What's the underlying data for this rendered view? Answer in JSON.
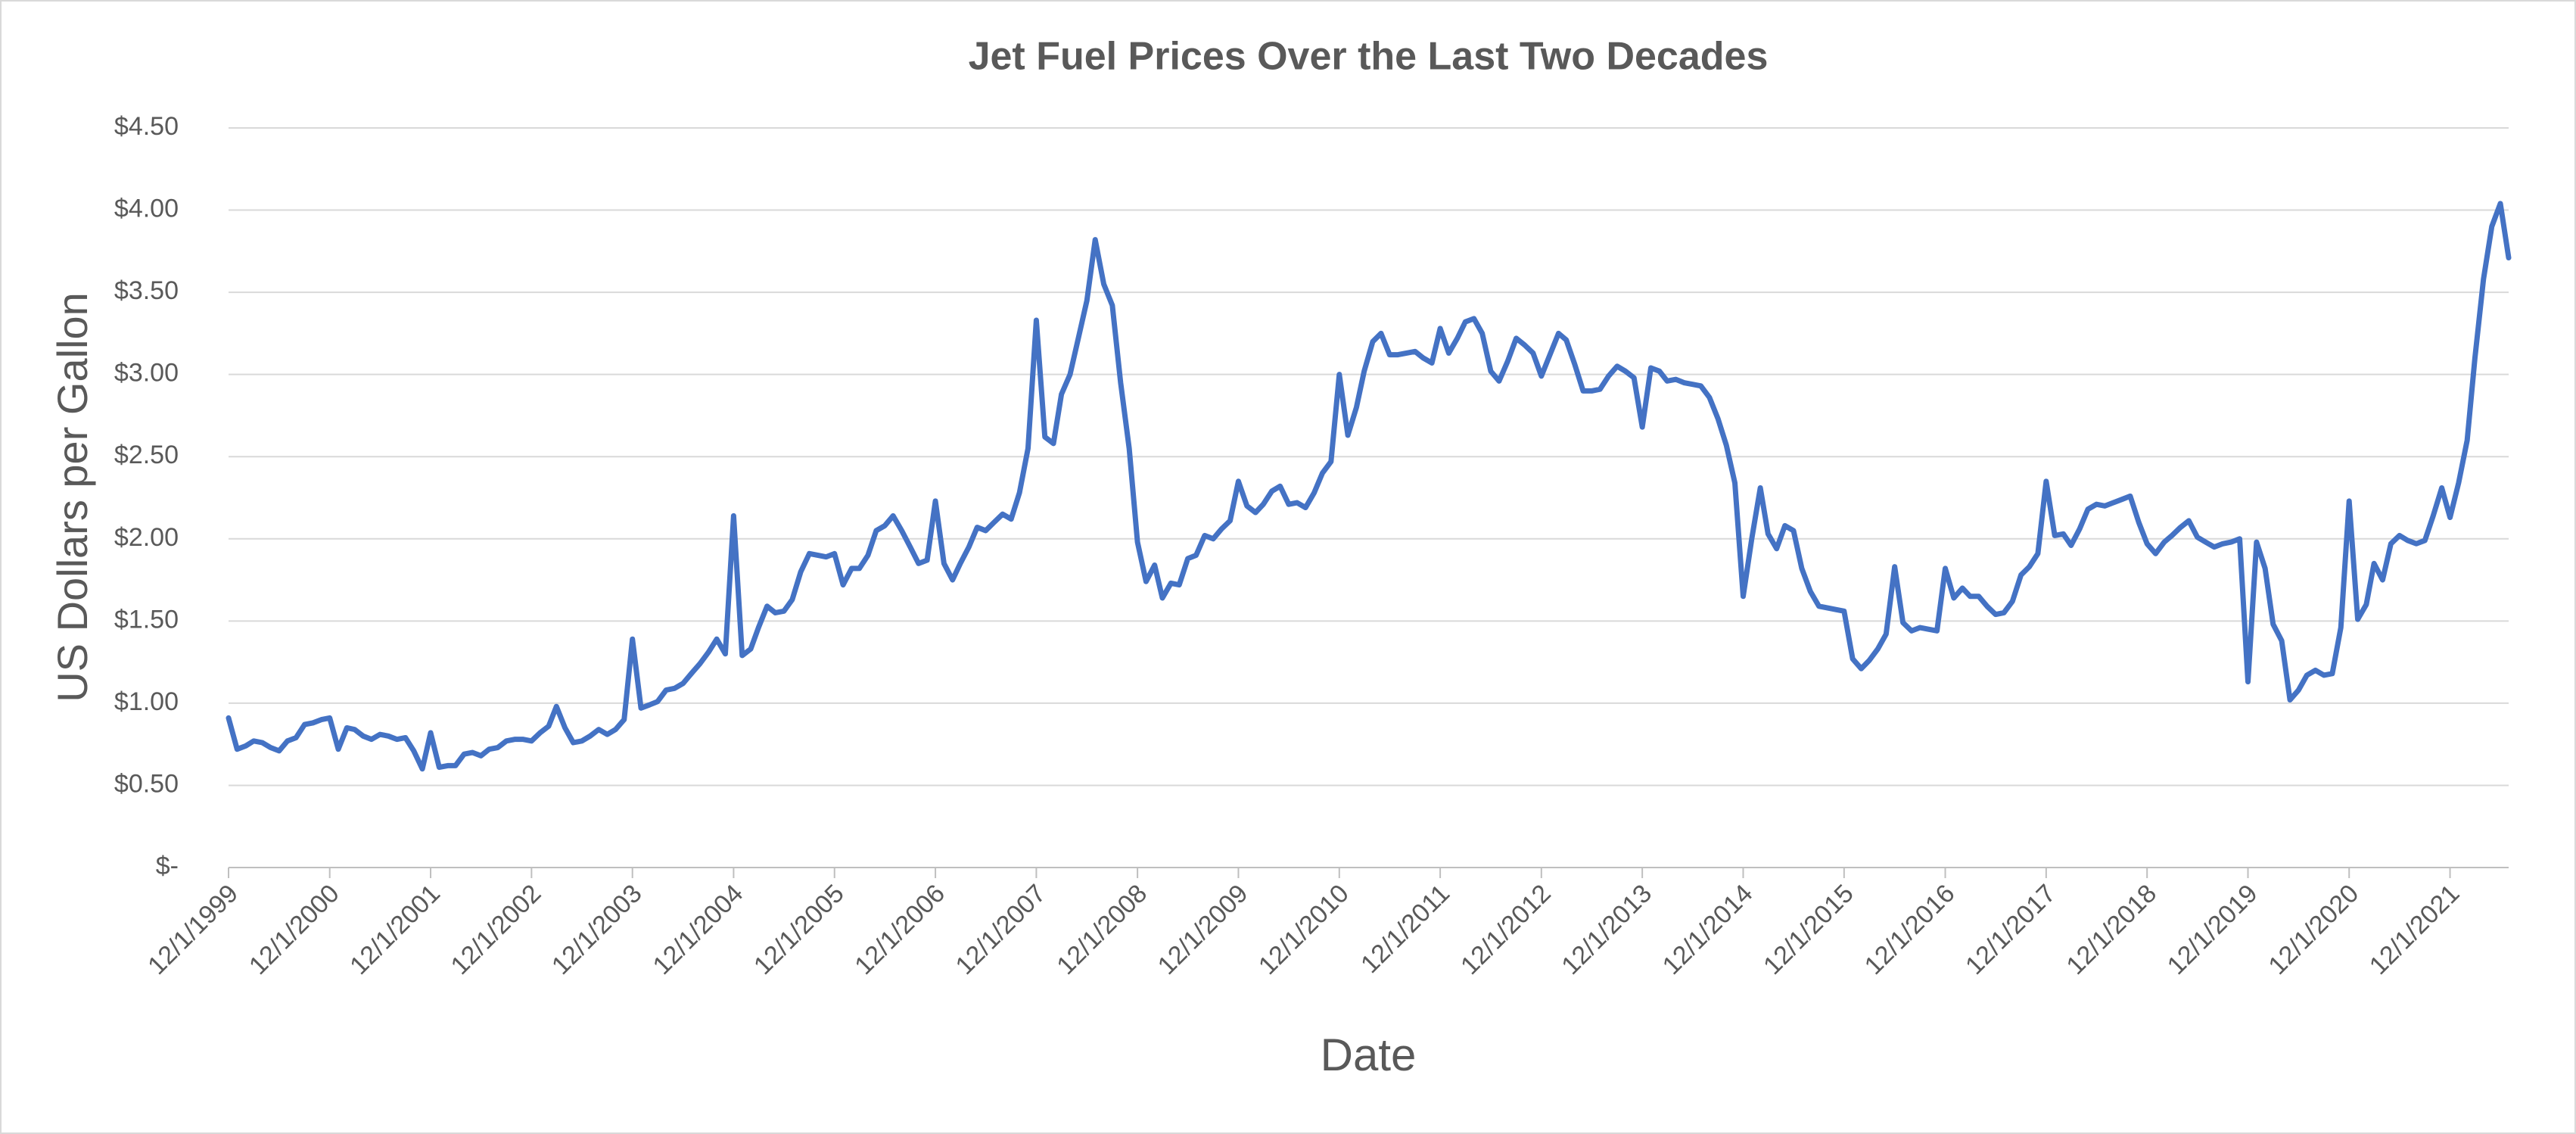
{
  "chart_data": {
    "type": "line",
    "title": "Jet Fuel Prices Over the Last Two Decades",
    "x_label": "Date",
    "y_label": "US Dollars per Gallon",
    "color": "#4472c4",
    "grid": true,
    "xlim": [
      "12/1/1999",
      "7/1/2022"
    ],
    "xticks": [
      "12/1/1999",
      "12/1/2000",
      "12/1/2001",
      "12/1/2002",
      "12/1/2003",
      "12/1/2004",
      "12/1/2005",
      "12/1/2006",
      "12/1/2007",
      "12/1/2008",
      "12/1/2009",
      "12/1/2010",
      "12/1/2011",
      "12/1/2012",
      "12/1/2013",
      "12/1/2014",
      "12/1/2015",
      "12/1/2016",
      "12/1/2017",
      "12/1/2018",
      "12/1/2019",
      "12/1/2020",
      "12/1/2021"
    ],
    "ylim": [
      0,
      4.5
    ],
    "yticks": [
      {
        "value": 0,
        "label": "$-"
      },
      {
        "value": 0.5,
        "label": "$0.50"
      },
      {
        "value": 1,
        "label": "$1.00"
      },
      {
        "value": 1.5,
        "label": "$1.50"
      },
      {
        "value": 2,
        "label": "$2.00"
      },
      {
        "value": 2.5,
        "label": "$2.50"
      },
      {
        "value": 3,
        "label": "$3.00"
      },
      {
        "value": 3.5,
        "label": "$3.50"
      },
      {
        "value": 4,
        "label": "$4.00"
      },
      {
        "value": 4.5,
        "label": "$4.50"
      }
    ],
    "x": [
      "12/1/1999",
      "1/1/2000",
      "2/1/2000",
      "3/1/2000",
      "4/1/2000",
      "5/1/2000",
      "6/1/2000",
      "7/1/2000",
      "8/1/2000",
      "9/1/2000",
      "10/1/2000",
      "11/1/2000",
      "12/1/2000",
      "1/1/2001",
      "2/1/2001",
      "3/1/2001",
      "4/1/2001",
      "5/1/2001",
      "6/1/2001",
      "7/1/2001",
      "8/1/2001",
      "9/1/2001",
      "10/1/2001",
      "11/1/2001",
      "12/1/2001",
      "1/1/2002",
      "2/1/2002",
      "3/1/2002",
      "4/1/2002",
      "5/1/2002",
      "6/1/2002",
      "7/1/2002",
      "8/1/2002",
      "9/1/2002",
      "10/1/2002",
      "11/1/2002",
      "12/1/2002",
      "1/1/2003",
      "2/1/2003",
      "3/1/2003",
      "4/1/2003",
      "5/1/2003",
      "6/1/2003",
      "7/1/2003",
      "8/1/2003",
      "9/1/2003",
      "10/1/2003",
      "11/1/2003",
      "12/1/2003",
      "1/1/2004",
      "2/1/2004",
      "3/1/2004",
      "4/1/2004",
      "5/1/2004",
      "6/1/2004",
      "7/1/2004",
      "8/1/2004",
      "9/1/2004",
      "10/1/2004",
      "11/1/2004",
      "12/1/2004",
      "1/1/2005",
      "2/1/2005",
      "3/1/2005",
      "4/1/2005",
      "5/1/2005",
      "6/1/2005",
      "7/1/2005",
      "8/1/2005",
      "9/1/2005",
      "10/1/2005",
      "11/1/2005",
      "12/1/2005",
      "1/1/2006",
      "2/1/2006",
      "3/1/2006",
      "4/1/2006",
      "5/1/2006",
      "6/1/2006",
      "7/1/2006",
      "8/1/2006",
      "9/1/2006",
      "10/1/2006",
      "11/1/2006",
      "12/1/2006",
      "1/1/2007",
      "2/1/2007",
      "3/1/2007",
      "4/1/2007",
      "5/1/2007",
      "6/1/2007",
      "7/1/2007",
      "8/1/2007",
      "9/1/2007",
      "10/1/2007",
      "11/1/2007",
      "12/1/2007",
      "1/1/2008",
      "2/1/2008",
      "3/1/2008",
      "4/1/2008",
      "5/1/2008",
      "6/1/2008",
      "7/1/2008",
      "8/1/2008",
      "9/1/2008",
      "10/1/2008",
      "11/1/2008",
      "12/1/2008",
      "1/1/2009",
      "2/1/2009",
      "3/1/2009",
      "4/1/2009",
      "5/1/2009",
      "6/1/2009",
      "7/1/2009",
      "8/1/2009",
      "9/1/2009",
      "10/1/2009",
      "11/1/2009",
      "12/1/2009",
      "1/1/2010",
      "2/1/2010",
      "3/1/2010",
      "4/1/2010",
      "5/1/2010",
      "6/1/2010",
      "7/1/2010",
      "8/1/2010",
      "9/1/2010",
      "10/1/2010",
      "11/1/2010",
      "12/1/2010",
      "1/1/2011",
      "2/1/2011",
      "3/1/2011",
      "4/1/2011",
      "5/1/2011",
      "6/1/2011",
      "7/1/2011",
      "8/1/2011",
      "9/1/2011",
      "10/1/2011",
      "11/1/2011",
      "12/1/2011",
      "1/1/2012",
      "2/1/2012",
      "3/1/2012",
      "4/1/2012",
      "5/1/2012",
      "6/1/2012",
      "7/1/2012",
      "8/1/2012",
      "9/1/2012",
      "10/1/2012",
      "11/1/2012",
      "12/1/2012",
      "1/1/2013",
      "2/1/2013",
      "3/1/2013",
      "4/1/2013",
      "5/1/2013",
      "6/1/2013",
      "7/1/2013",
      "8/1/2013",
      "9/1/2013",
      "10/1/2013",
      "11/1/2013",
      "12/1/2013",
      "1/1/2014",
      "2/1/2014",
      "3/1/2014",
      "4/1/2014",
      "5/1/2014",
      "6/1/2014",
      "7/1/2014",
      "8/1/2014",
      "9/1/2014",
      "10/1/2014",
      "11/1/2014",
      "12/1/2014",
      "1/1/2015",
      "2/1/2015",
      "3/1/2015",
      "4/1/2015",
      "5/1/2015",
      "6/1/2015",
      "7/1/2015",
      "8/1/2015",
      "9/1/2015",
      "10/1/2015",
      "11/1/2015",
      "12/1/2015",
      "1/1/2016",
      "2/1/2016",
      "3/1/2016",
      "4/1/2016",
      "5/1/2016",
      "6/1/2016",
      "7/1/2016",
      "8/1/2016",
      "9/1/2016",
      "10/1/2016",
      "11/1/2016",
      "12/1/2016",
      "1/1/2017",
      "2/1/2017",
      "3/1/2017",
      "4/1/2017",
      "5/1/2017",
      "6/1/2017",
      "7/1/2017",
      "8/1/2017",
      "9/1/2017",
      "10/1/2017",
      "11/1/2017",
      "12/1/2017",
      "1/1/2018",
      "2/1/2018",
      "3/1/2018",
      "4/1/2018",
      "5/1/2018",
      "6/1/2018",
      "7/1/2018",
      "8/1/2018",
      "9/1/2018",
      "10/1/2018",
      "11/1/2018",
      "12/1/2018",
      "1/1/2019",
      "2/1/2019",
      "3/1/2019",
      "4/1/2019",
      "5/1/2019",
      "6/1/2019",
      "7/1/2019",
      "8/1/2019",
      "9/1/2019",
      "10/1/2019",
      "11/1/2019",
      "12/1/2019",
      "1/1/2020",
      "2/1/2020",
      "3/1/2020",
      "4/1/2020",
      "5/1/2020",
      "6/1/2020",
      "7/1/2020",
      "8/1/2020",
      "9/1/2020",
      "10/1/2020",
      "11/1/2020",
      "12/1/2020",
      "1/1/2021",
      "2/1/2021",
      "3/1/2021",
      "4/1/2021",
      "5/1/2021",
      "6/1/2021",
      "7/1/2021",
      "8/1/2021",
      "9/1/2021",
      "10/1/2021",
      "11/1/2021",
      "12/1/2021",
      "1/1/2022",
      "2/1/2022",
      "3/1/2022",
      "4/1/2022",
      "5/1/2022",
      "6/1/2022",
      "7/1/2022"
    ],
    "values": [
      0.91,
      0.72,
      0.74,
      0.77,
      0.76,
      0.73,
      0.71,
      0.77,
      0.79,
      0.87,
      0.88,
      0.9,
      0.91,
      0.72,
      0.85,
      0.84,
      0.8,
      0.78,
      0.81,
      0.8,
      0.78,
      0.79,
      0.71,
      0.6,
      0.82,
      0.61,
      0.62,
      0.62,
      0.69,
      0.7,
      0.68,
      0.72,
      0.73,
      0.77,
      0.78,
      0.78,
      0.77,
      0.82,
      0.86,
      0.98,
      0.85,
      0.76,
      0.77,
      0.8,
      0.84,
      0.81,
      0.84,
      0.9,
      1.39,
      0.97,
      0.99,
      1.01,
      1.08,
      1.09,
      1.12,
      1.18,
      1.24,
      1.31,
      1.39,
      1.3,
      2.14,
      1.29,
      1.33,
      1.46,
      1.59,
      1.55,
      1.56,
      1.63,
      1.8,
      1.91,
      1.9,
      1.89,
      1.91,
      1.72,
      1.82,
      1.82,
      1.9,
      2.05,
      2.08,
      2.14,
      2.05,
      1.95,
      1.85,
      1.87,
      2.23,
      1.85,
      1.75,
      1.85,
      1.95,
      2.07,
      2.05,
      2.1,
      2.15,
      2.12,
      2.28,
      2.55,
      3.33,
      2.62,
      2.58,
      2.88,
      3.0,
      3.22,
      3.45,
      3.82,
      3.55,
      3.42,
      2.95,
      2.55,
      1.98,
      1.74,
      1.84,
      1.64,
      1.73,
      1.72,
      1.88,
      1.9,
      2.02,
      2.0,
      2.06,
      2.11,
      2.35,
      2.2,
      2.16,
      2.21,
      2.29,
      2.32,
      2.21,
      2.22,
      2.19,
      2.28,
      2.4,
      2.47,
      3.0,
      2.63,
      2.8,
      3.02,
      3.2,
      3.25,
      3.12,
      3.12,
      3.13,
      3.14,
      3.1,
      3.07,
      3.28,
      3.13,
      3.22,
      3.32,
      3.34,
      3.25,
      3.02,
      2.96,
      3.08,
      3.22,
      3.18,
      3.13,
      2.99,
      3.12,
      3.25,
      3.21,
      3.06,
      2.9,
      2.9,
      2.91,
      2.99,
      3.05,
      3.02,
      2.98,
      2.68,
      3.04,
      3.02,
      2.96,
      2.97,
      2.95,
      2.94,
      2.93,
      2.86,
      2.73,
      2.57,
      2.34,
      1.65,
      2.0,
      2.31,
      2.03,
      1.94,
      2.08,
      2.05,
      1.82,
      1.68,
      1.59,
      1.58,
      1.57,
      1.56,
      1.27,
      1.21,
      1.26,
      1.33,
      1.42,
      1.83,
      1.49,
      1.44,
      1.46,
      1.45,
      1.44,
      1.82,
      1.64,
      1.7,
      1.65,
      1.65,
      1.59,
      1.54,
      1.55,
      1.62,
      1.78,
      1.83,
      1.91,
      2.35,
      2.02,
      2.03,
      1.96,
      2.06,
      2.18,
      2.21,
      2.2,
      2.22,
      2.24,
      2.26,
      2.1,
      1.97,
      1.91,
      1.98,
      2.02,
      2.07,
      2.11,
      2.01,
      1.98,
      1.95,
      1.97,
      1.98,
      2.0,
      1.13,
      1.98,
      1.82,
      1.48,
      1.38,
      1.02,
      1.08,
      1.17,
      1.2,
      1.17,
      1.18,
      1.46,
      2.23,
      1.51,
      1.6,
      1.85,
      1.75,
      1.97,
      2.02,
      1.99,
      1.97,
      1.99,
      2.14,
      2.31,
      2.13,
      2.34,
      2.6,
      3.1,
      3.58,
      3.9,
      4.04,
      3.71
    ]
  }
}
